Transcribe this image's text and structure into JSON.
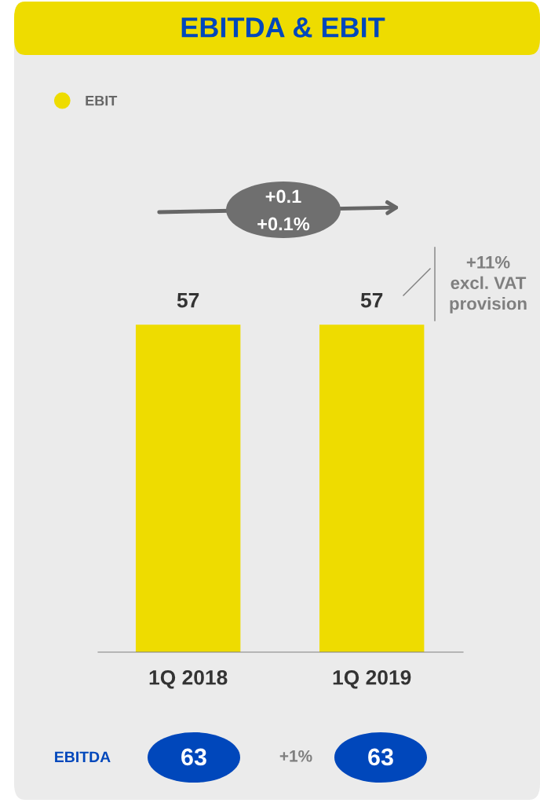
{
  "chart_data": {
    "type": "bar",
    "title": "EBITDA & EBIT",
    "categories": [
      "1Q 2018",
      "1Q 2019"
    ],
    "series": [
      {
        "name": "EBIT",
        "color": "#eedc00",
        "values": [
          57,
          57
        ]
      }
    ],
    "data_labels": true,
    "legend": "top left",
    "grid": false,
    "annotations": [
      "+0.1",
      "+0.1%",
      "+11%\nexcl. VAT\nprovision",
      "EBITDA",
      "63",
      "+1%",
      "63"
    ]
  }
}
